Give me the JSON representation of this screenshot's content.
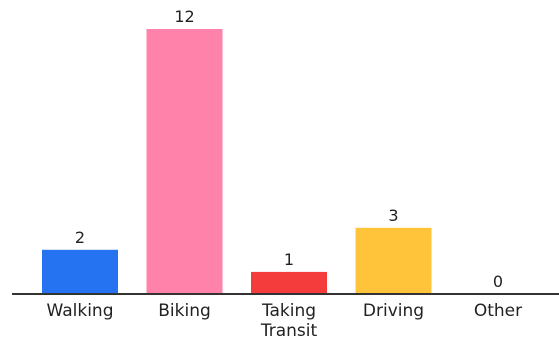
{
  "chart_data": {
    "type": "bar",
    "categories": [
      "Walking",
      "Biking",
      "Taking Transit",
      "Driving",
      "Other"
    ],
    "category_lines": [
      [
        "Walking"
      ],
      [
        "Biking"
      ],
      [
        "Taking",
        "Transit"
      ],
      [
        "Driving"
      ],
      [
        "Other"
      ]
    ],
    "values": [
      2,
      12,
      1,
      3,
      0
    ],
    "data_labels": [
      "2",
      "12",
      "1",
      "3",
      "0"
    ],
    "colors": [
      "#2673f2",
      "#ff82aa",
      "#f43c3c",
      "#ffc43a",
      "#ffffff"
    ],
    "ylim": [
      0,
      12
    ],
    "grid": false,
    "legend": "none",
    "axis_color": "#333333"
  }
}
